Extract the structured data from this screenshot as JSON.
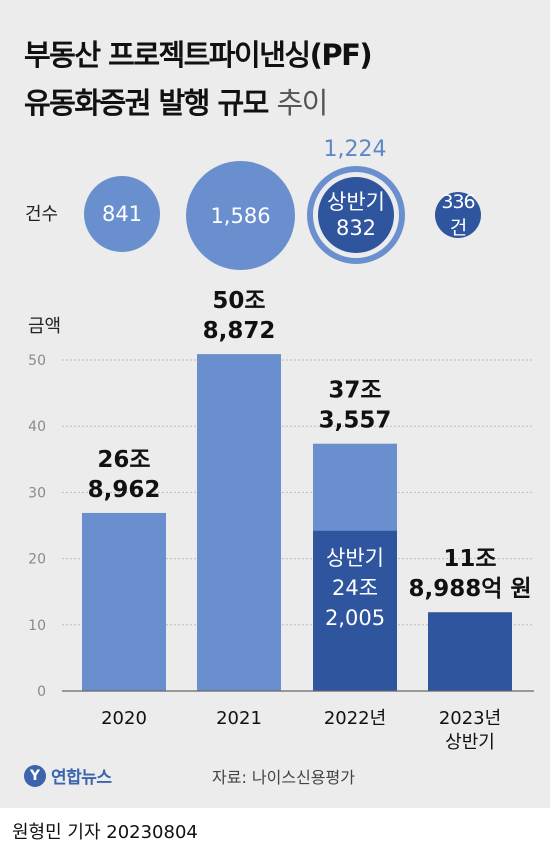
{
  "title": {
    "line1": "부동산 프로젝트파이낸싱(PF)",
    "line2_bold": "유동화증권 발행 규모",
    "line2_light": "추이"
  },
  "counts": {
    "label": "건수",
    "items": [
      {
        "year": "2020",
        "value": "841"
      },
      {
        "year": "2021",
        "value": "1,586"
      },
      {
        "year": "2022",
        "total": "1,224",
        "half_label": "상반기",
        "half_value": "832"
      },
      {
        "year": "2023 상반기",
        "value": "336건"
      }
    ]
  },
  "colors": {
    "light": "#6a8fcf",
    "dark": "#2f559f",
    "background": "#ececec",
    "grid": "#bdbdbd"
  },
  "chart_data": {
    "type": "bar",
    "ylabel": "금액",
    "ylim": [
      0,
      55
    ],
    "yticks": [
      "0",
      "10",
      "20",
      "30",
      "40",
      "50"
    ],
    "categories": [
      "2020",
      "2021",
      "2022년",
      "2023년\n상반기"
    ],
    "values": [
      26.8962,
      50.8872,
      37.3557,
      11.8988
    ],
    "first_half_2022": 24.2005,
    "value_labels": [
      [
        "26조",
        "8,962"
      ],
      [
        "50조",
        "8,872"
      ],
      [
        "37조",
        "3,557"
      ],
      [
        "11조",
        "8,988억 원"
      ]
    ],
    "inner_label": [
      "상반기",
      "24조",
      "2,005"
    ],
    "grid": true
  },
  "footer": {
    "brand": "연합뉴스",
    "brand_icon": "globe-logo-icon",
    "source": "자료: 나이스신용평가",
    "credit": "원형민 기자  20230804"
  }
}
